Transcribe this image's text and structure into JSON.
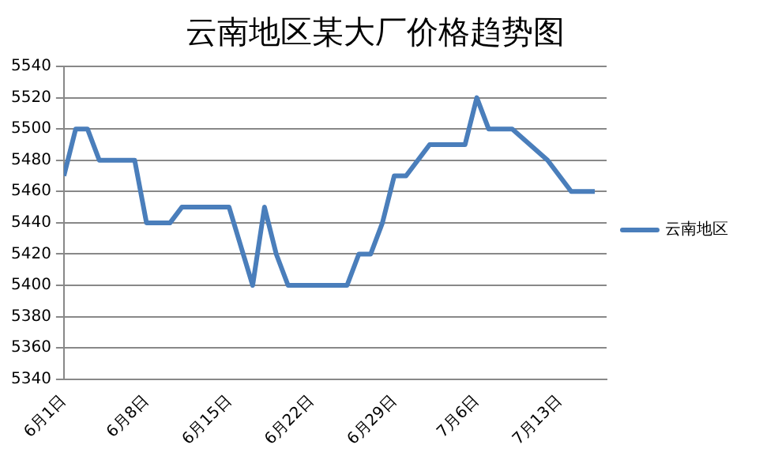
{
  "chart_data": {
    "type": "line",
    "title": "云南地区某大厂价格趋势图",
    "x": [
      "--06-01",
      "--06-02",
      "--06-03",
      "--06-04",
      "--06-07",
      "--06-08",
      "--06-10",
      "--06-11",
      "--06-15",
      "--06-17",
      "--06-18",
      "--06-19",
      "--06-20",
      "--06-25",
      "--06-26",
      "--06-27",
      "--06-28",
      "--06-29",
      "--06-30",
      "--07-02",
      "--07-05",
      "--07-06",
      "--07-07",
      "--07-09",
      "--07-12",
      "--07-14",
      "--07-16"
    ],
    "series": [
      {
        "name": "云南地区",
        "color": "#4a7ebb",
        "values": [
          5470,
          5500,
          5500,
          5480,
          5480,
          5440,
          5440,
          5450,
          5450,
          5400,
          5450,
          5420,
          5400,
          5400,
          5420,
          5420,
          5440,
          5470,
          5470,
          5490,
          5490,
          5520,
          5500,
          5500,
          5480,
          5460,
          5460
        ]
      }
    ],
    "xlim": [
      "--06-01",
      "--07-17"
    ],
    "xticks": [
      {
        "value": "--06-01",
        "label": "6月1日"
      },
      {
        "value": "--06-08",
        "label": "6月8日"
      },
      {
        "value": "--06-15",
        "label": "6月15日"
      },
      {
        "value": "--06-22",
        "label": "6月22日"
      },
      {
        "value": "--06-29",
        "label": "6月29日"
      },
      {
        "value": "--07-06",
        "label": "7月6日"
      },
      {
        "value": "--07-13",
        "label": "7月13日"
      }
    ],
    "ylim": [
      5340,
      5540
    ],
    "yticks": [
      5340,
      5360,
      5380,
      5400,
      5420,
      5440,
      5460,
      5480,
      5500,
      5520,
      5540
    ],
    "grid": "y",
    "legend": "right",
    "marker": "none",
    "line_style": "solid"
  }
}
